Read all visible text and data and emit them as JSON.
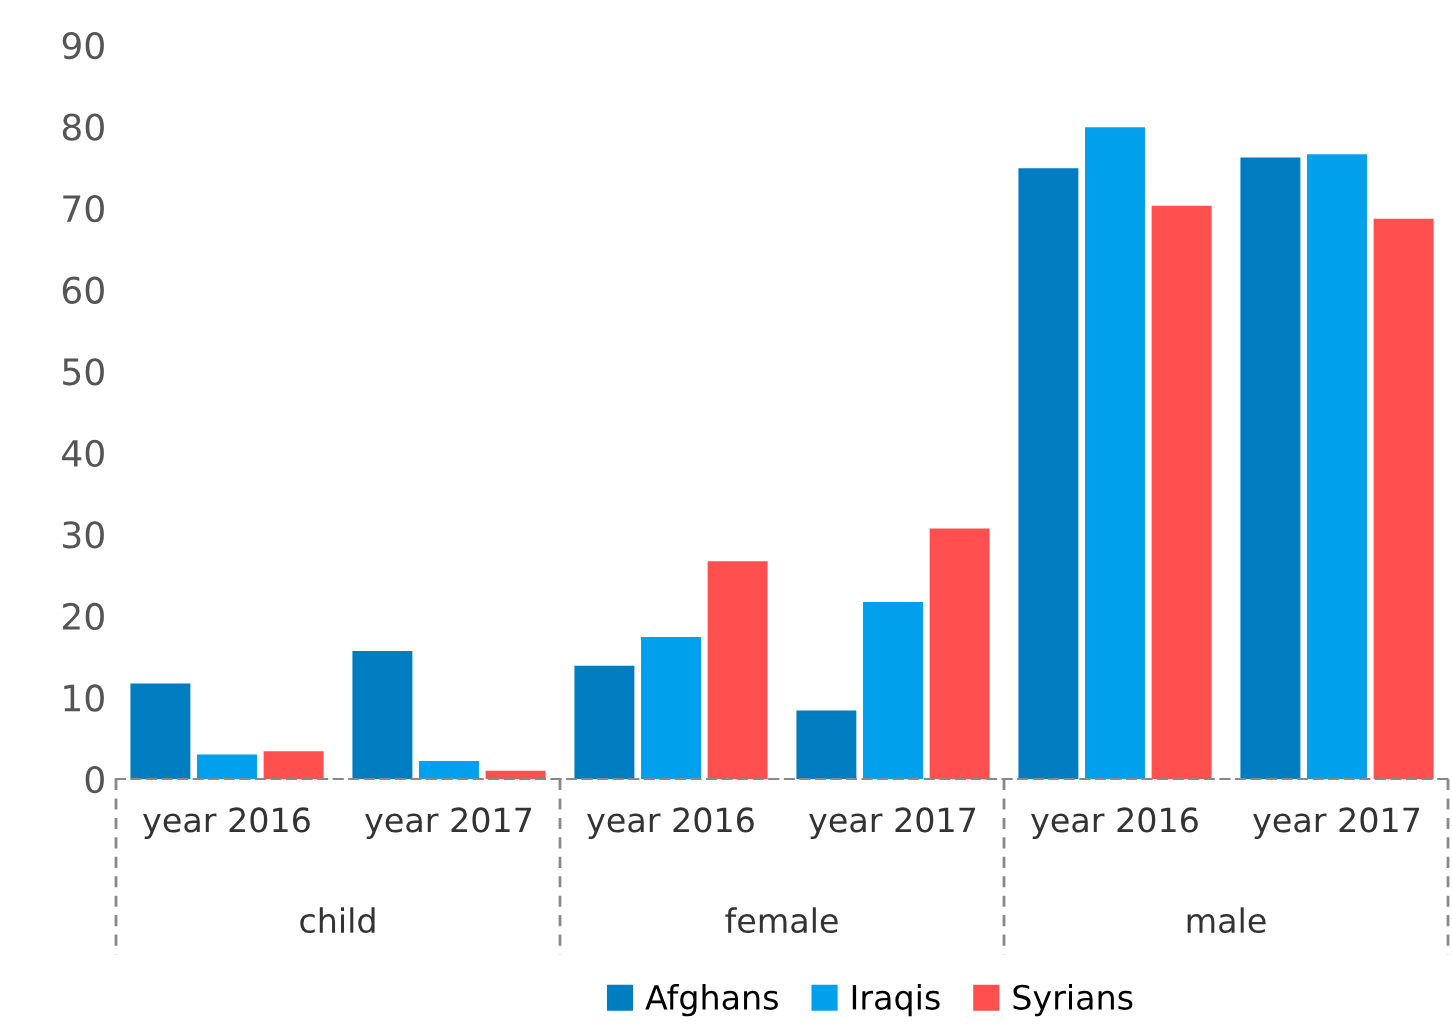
{
  "chart_data": {
    "type": "bar",
    "categories": [
      "year 2016",
      "year 2017",
      "year 2016",
      "year 2017",
      "year 2016",
      "year 2017"
    ],
    "annotations": [
      "child",
      "female",
      "male"
    ],
    "series": [
      {
        "name": "Afghans",
        "color": "#007dc0",
        "values": [
          11.7,
          15.7,
          13.9,
          8.4,
          74.9,
          76.2
        ]
      },
      {
        "name": "Iraqis",
        "color": "#00a0ec",
        "values": [
          3.0,
          2.2,
          17.4,
          21.7,
          79.9,
          76.6
        ]
      },
      {
        "name": "Syrians",
        "color": "#ff4f4f",
        "values": [
          3.4,
          1.0,
          26.7,
          30.7,
          70.3,
          68.7
        ]
      }
    ],
    "ylim": [
      0,
      90
    ],
    "yticks": [
      0,
      10,
      20,
      30,
      40,
      50,
      60,
      70,
      80,
      90
    ],
    "grid": false,
    "legend": "bottom"
  }
}
